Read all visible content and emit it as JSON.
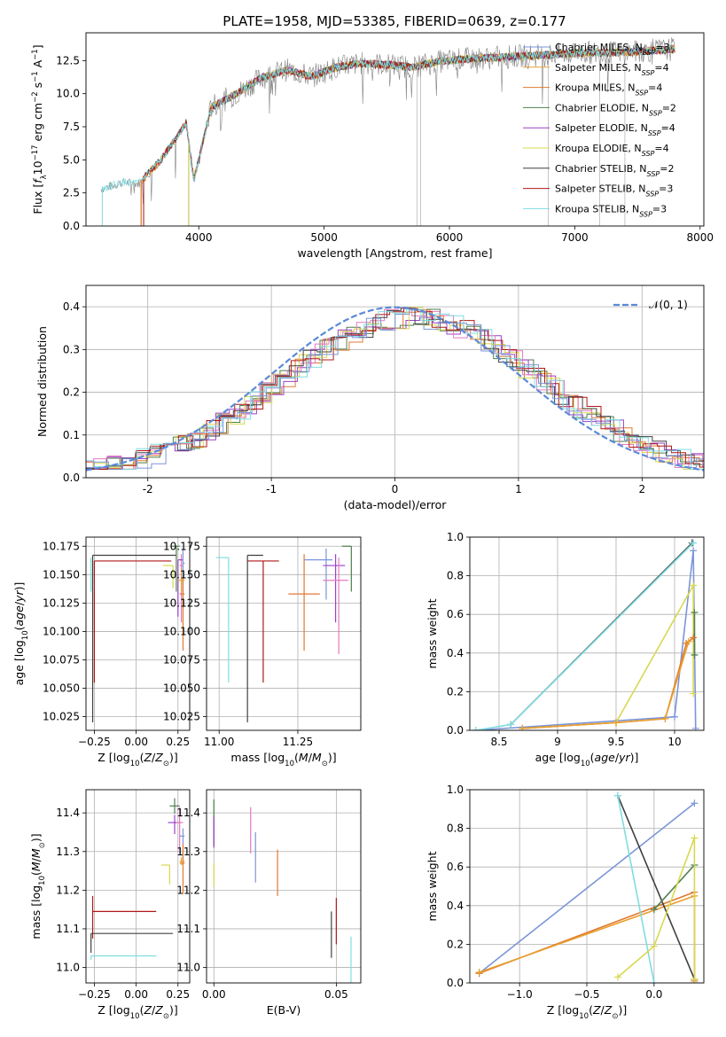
{
  "title": "PLATE=1958, MJD=53385, FIBERID=0639, z=0.177",
  "colors": {
    "chabrier_miles": "#7b95d8",
    "salpeter_miles": "#e8a030",
    "kroupa_miles": "#e07a30",
    "chabrier_elodie": "#4f7f4f",
    "salpeter_elodie": "#9b40c8",
    "kroupa_elodie": "#d8d850",
    "chabrier_stelib": "#404040",
    "salpeter_stelib": "#b01818",
    "kroupa_stelib": "#80dde0",
    "observed": "#808080",
    "pink": "#e37ac0",
    "gauss": "#5b8ad8",
    "lime": "#c8e050"
  },
  "chart_data": [
    {
      "id": "spectrum",
      "type": "line",
      "xlabel": "wavelength [Angstrom, rest frame]",
      "ylabel": "Flux [f_λ10^-17 erg cm^-2 s^-1 A^-1]",
      "xlim": [
        3100,
        8030
      ],
      "ylim": [
        0,
        14.6
      ],
      "xticks": [
        4000,
        5000,
        6000,
        7000,
        8000
      ],
      "yticks": [
        0.0,
        2.5,
        5.0,
        7.5,
        10.0,
        12.5
      ],
      "legend_position": "right",
      "legend": [
        "Chabrier MILES, N_SSP=3",
        "Salpeter MILES, N_SSP=4",
        "Kroupa MILES, N_SSP=4",
        "Chabrier ELODIE, N_SSP=2",
        "Salpeter ELODIE, N_SSP=4",
        "Kroupa ELODIE, N_SSP=4",
        "Chabrier STELIB, N_SSP=2",
        "Salpeter STELIB, N_SSP=3",
        "Kroupa STELIB, N_SSP=3"
      ],
      "continuum": {
        "x": [
          3220,
          3400,
          3520,
          3700,
          3900,
          3960,
          4100,
          4300,
          4500,
          4700,
          4900,
          5100,
          5300,
          5500,
          5700,
          5900,
          6100,
          6300,
          6500,
          6700,
          6900,
          7100,
          7300,
          7500,
          7700,
          7800
        ],
        "y": [
          2.8,
          3.3,
          3.2,
          5.0,
          7.8,
          3.5,
          9.0,
          10.0,
          11.2,
          11.8,
          11.3,
          12.0,
          12.3,
          12.2,
          12.0,
          12.4,
          12.6,
          12.7,
          12.8,
          12.9,
          13.0,
          13.1,
          13.1,
          13.2,
          13.3,
          13.4
        ]
      }
    },
    {
      "id": "residuals",
      "type": "step",
      "xlabel": "(data-model)/error",
      "ylabel": "Normed distribution",
      "xlim": [
        -2.5,
        2.5
      ],
      "ylim": [
        0,
        0.45
      ],
      "xticks": [
        -2,
        -1,
        0,
        1,
        2
      ],
      "yticks": [
        0.0,
        0.1,
        0.2,
        0.3,
        0.4
      ],
      "gauss_label": "𝒩(0, 1)",
      "gauss_position": "top-right"
    },
    {
      "id": "age_vs_Z",
      "type": "errorbar",
      "xlabel": "Z [log10(Z/Z⊙)]",
      "ylabel": "age [log10(age/yr)]",
      "xlim": [
        -0.3,
        0.32
      ],
      "ylim": [
        10.013,
        10.183
      ],
      "xticks": [
        -0.25,
        0.0,
        0.25
      ],
      "xtick_labels": [
        "−0.25",
        "0.00",
        "0.25"
      ],
      "yticks": [
        10.025,
        10.05,
        10.075,
        10.1,
        10.125,
        10.15,
        10.175
      ],
      "ytick_labels": [
        "10.025",
        "10.050",
        "10.075",
        "10.100",
        "10.125",
        "10.150",
        "10.175"
      ],
      "points": [
        {
          "c": "chabrier_stelib",
          "x": -0.26,
          "xe": [
            0.0,
            0.5
          ],
          "y": 10.167,
          "ye": [
            0.147,
            0.0
          ]
        },
        {
          "c": "salpeter_stelib",
          "x": -0.25,
          "xe": [
            0.0,
            0.46
          ],
          "y": 10.162,
          "ye": [
            0.107,
            0.0
          ]
        },
        {
          "c": "kroupa_stelib",
          "x": -0.27,
          "xe": [
            0.0,
            0.0
          ],
          "y": 10.165,
          "ye": [
            0.03,
            0.0
          ]
        },
        {
          "c": "chabrier_elodie",
          "x": 0.24,
          "xe": [
            0.03,
            0.02
          ],
          "y": 10.175,
          "ye": [
            0.04,
            0.0
          ]
        },
        {
          "c": "kroupa_elodie",
          "x": 0.22,
          "xe": [
            0.06,
            0.0
          ],
          "y": 10.158,
          "ye": [
            0.02,
            0.0
          ]
        },
        {
          "c": "pink",
          "x": 0.27,
          "xe": [
            0.01,
            0.01
          ],
          "y": 10.158,
          "ye": [
            0.05,
            0.01
          ]
        },
        {
          "c": "salpeter_elodie",
          "x": 0.25,
          "xe": [
            0.0,
            0.03
          ],
          "y": 10.163,
          "ye": [
            0.05,
            0.0
          ]
        },
        {
          "c": "chabrier_miles",
          "x": 0.28,
          "xe": [
            0.0,
            0.01
          ],
          "y": 10.16,
          "ye": [
            0.03,
            0.012
          ]
        },
        {
          "c": "kroupa_miles",
          "x": 0.28,
          "xe": [
            0.02,
            0.01
          ],
          "y": 10.133,
          "ye": [
            0.05,
            0.014
          ]
        },
        {
          "c": "salpeter_miles",
          "x": 0.27,
          "xe": [
            0.02,
            0.02
          ],
          "y": 10.145,
          "ye": [
            0.01,
            0.01
          ]
        }
      ]
    },
    {
      "id": "age_vs_mass",
      "type": "errorbar",
      "xlabel": "mass [log10(M/M⊙)]",
      "xlim": [
        10.96,
        11.45
      ],
      "ylim": [
        10.013,
        10.183
      ],
      "xticks": [
        11.0,
        11.25
      ],
      "xtick_labels": [
        "11.00",
        "11.25"
      ],
      "yticks": [
        10.025,
        10.05,
        10.075,
        10.1,
        10.125,
        10.15,
        10.175
      ],
      "ytick_labels": [
        "10.025",
        "10.050",
        "10.075",
        "10.100",
        "10.125",
        "10.150",
        "10.175"
      ],
      "points": [
        {
          "c": "kroupa_stelib",
          "x": 11.03,
          "xe": [
            0.04,
            0.0
          ],
          "y": 10.165,
          "ye": [
            0.11,
            0.0
          ]
        },
        {
          "c": "chabrier_stelib",
          "x": 11.09,
          "xe": [
            0.0,
            0.05
          ],
          "y": 10.167,
          "ye": [
            0.147,
            0.0
          ]
        },
        {
          "c": "salpeter_stelib",
          "x": 11.14,
          "xe": [
            0.05,
            0.05
          ],
          "y": 10.162,
          "ye": [
            0.107,
            0.0
          ]
        },
        {
          "c": "kroupa_miles",
          "x": 11.27,
          "xe": [
            0.05,
            0.05
          ],
          "y": 10.133,
          "ye": [
            0.05,
            0.035
          ]
        },
        {
          "c": "chabrier_miles",
          "x": 11.34,
          "xe": [
            0.07,
            0.02
          ],
          "y": 10.163,
          "ye": [
            0.035,
            0.01
          ]
        },
        {
          "c": "salpeter_elodie",
          "x": 11.37,
          "xe": [
            0.04,
            0.03
          ],
          "y": 10.158,
          "ye": [
            0.05,
            0.01
          ]
        },
        {
          "c": "pink",
          "x": 11.38,
          "xe": [
            0.05,
            0.03
          ],
          "y": 10.145,
          "ye": [
            0.065,
            0.02
          ]
        },
        {
          "c": "chabrier_elodie",
          "x": 11.42,
          "xe": [
            0.03,
            0.0
          ],
          "y": 10.175,
          "ye": [
            0.04,
            0.0
          ]
        }
      ]
    },
    {
      "id": "weight_vs_age",
      "type": "line",
      "xlabel": "age [log10(age/yr)]",
      "ylabel": "mass weight",
      "xlim": [
        8.25,
        10.25
      ],
      "ylim": [
        0.0,
        1.0
      ],
      "xticks": [
        8.5,
        9.0,
        9.5,
        10.0
      ],
      "yticks": [
        0.0,
        0.2,
        0.4,
        0.6,
        0.8,
        1.0
      ],
      "series": [
        {
          "c": "chabrier_miles",
          "x": [
            8.3,
            10.0,
            10.16,
            10.18
          ],
          "y": [
            0.0,
            0.07,
            0.93,
            0.01
          ]
        },
        {
          "c": "chabrier_stelib",
          "x": [
            8.6,
            10.15
          ],
          "y": [
            0.03,
            0.97
          ]
        },
        {
          "c": "kroupa_stelib",
          "x": [
            8.3,
            8.6,
            10.16
          ],
          "y": [
            0.0,
            0.03,
            0.97
          ]
        },
        {
          "c": "kroupa_elodie",
          "x": [
            8.7,
            9.5,
            10.16,
            10.16
          ],
          "y": [
            0.01,
            0.04,
            0.75,
            0.19
          ]
        },
        {
          "c": "chabrier_elodie",
          "x": [
            10.17,
            10.17
          ],
          "y": [
            0.39,
            0.61
          ]
        },
        {
          "c": "kroupa_miles",
          "x": [
            8.7,
            9.5,
            9.92,
            10.1,
            10.16
          ],
          "y": [
            0.01,
            0.04,
            0.06,
            0.45,
            0.48
          ]
        },
        {
          "c": "salpeter_miles",
          "x": [
            8.7,
            9.5,
            9.92,
            10.12
          ],
          "y": [
            0.01,
            0.04,
            0.06,
            0.46
          ]
        }
      ]
    },
    {
      "id": "mass_vs_Z",
      "type": "errorbar",
      "xlabel": "Z [log10(Z/Z⊙)]",
      "ylabel": "mass [log10(M/M⊙)]",
      "xlim": [
        -0.3,
        0.32
      ],
      "ylim": [
        10.96,
        11.46
      ],
      "xticks": [
        -0.25,
        0.0,
        0.25
      ],
      "xtick_labels": [
        "−0.25",
        "0.00",
        "0.25"
      ],
      "yticks": [
        11.0,
        11.1,
        11.2,
        11.3,
        11.4
      ],
      "points": [
        {
          "c": "salpeter_stelib",
          "x": -0.26,
          "xe": [
            0.0,
            0.38
          ],
          "y": 11.145,
          "ye": [
            0.07,
            0.04
          ]
        },
        {
          "c": "chabrier_stelib",
          "x": -0.27,
          "xe": [
            0.0,
            0.49
          ],
          "y": 11.088,
          "ye": [
            0.05,
            0.0
          ]
        },
        {
          "c": "kroupa_stelib",
          "x": -0.27,
          "xe": [
            0.0,
            0.39
          ],
          "y": 11.03,
          "ye": [
            0.01,
            0.0
          ]
        },
        {
          "c": "chabrier_elodie",
          "x": 0.23,
          "xe": [
            0.03,
            0.03
          ],
          "y": 11.418,
          "ye": [
            0.02,
            0.02
          ]
        },
        {
          "c": "salpeter_elodie",
          "x": 0.23,
          "xe": [
            0.04,
            0.03
          ],
          "y": 11.375,
          "ye": [
            0.03,
            0.02
          ]
        },
        {
          "c": "pink",
          "x": 0.26,
          "xe": [
            0.02,
            0.02
          ],
          "y": 11.375,
          "ye": [
            0.08,
            0.04
          ]
        },
        {
          "c": "chabrier_miles",
          "x": 0.28,
          "xe": [
            0.02,
            0.01
          ],
          "y": 11.34,
          "ye": [
            0.07,
            0.02
          ]
        },
        {
          "c": "kroupa_elodie",
          "x": 0.2,
          "xe": [
            0.05,
            0.0
          ],
          "y": 11.265,
          "ye": [
            0.05,
            0.0
          ]
        },
        {
          "c": "kroupa_miles",
          "x": 0.28,
          "xe": [
            0.02,
            0.01
          ],
          "y": 11.27,
          "ye": [
            0.08,
            0.05
          ]
        },
        {
          "c": "salpeter_miles",
          "x": 0.27,
          "xe": [
            0.01,
            0.02
          ],
          "y": 11.275,
          "ye": [
            0.01,
            0.01
          ]
        }
      ]
    },
    {
      "id": "mass_vs_EBV",
      "type": "errorbar",
      "xlabel": "E(B-V)",
      "xlim": [
        -0.003,
        0.06
      ],
      "ylim": [
        10.96,
        11.46
      ],
      "xticks": [
        0.0,
        0.05
      ],
      "xtick_labels": [
        "0.00",
        "0.05"
      ],
      "yticks": [
        11.0,
        11.1,
        11.2,
        11.3,
        11.4
      ],
      "points": [
        {
          "c": "chabrier_elodie",
          "x": 0.0,
          "y": 11.375,
          "ye": [
            0.06,
            0.06
          ]
        },
        {
          "c": "salpeter_elodie",
          "x": 0.0,
          "y": 11.34,
          "ye": [
            0.03,
            0.05
          ]
        },
        {
          "c": "kroupa_elodie",
          "x": 0.0,
          "y": 11.24,
          "ye": [
            0.03,
            0.03
          ]
        },
        {
          "c": "pink",
          "x": 0.015,
          "y": 11.355,
          "ye": [
            0.06,
            0.06
          ]
        },
        {
          "c": "chabrier_miles",
          "x": 0.017,
          "y": 11.285,
          "ye": [
            0.065,
            0.065
          ]
        },
        {
          "c": "kroupa_miles",
          "x": 0.026,
          "y": 11.245,
          "ye": [
            0.06,
            0.06
          ]
        },
        {
          "c": "chabrier_stelib",
          "x": 0.048,
          "y": 11.085,
          "ye": [
            0.06,
            0.06
          ]
        },
        {
          "c": "salpeter_stelib",
          "x": 0.05,
          "y": 11.12,
          "ye": [
            0.06,
            0.06
          ]
        },
        {
          "c": "kroupa_stelib",
          "x": 0.056,
          "y": 11.02,
          "ye": [
            0.06,
            0.06
          ]
        }
      ]
    },
    {
      "id": "weight_vs_Z",
      "type": "line",
      "xlabel": "Z [log10(Z/Z⊙)]",
      "ylabel": "mass weight",
      "xlim": [
        -1.37,
        0.37
      ],
      "ylim": [
        0.0,
        1.0
      ],
      "xticks": [
        -1.0,
        -0.5,
        0.0
      ],
      "xtick_labels": [
        "−1.0",
        "−0.5",
        "0.0"
      ],
      "yticks": [
        0.0,
        0.2,
        0.4,
        0.6,
        0.8,
        1.0
      ],
      "series": [
        {
          "c": "chabrier_miles",
          "x": [
            -1.3,
            0.3
          ],
          "y": [
            0.05,
            0.93
          ]
        },
        {
          "c": "kroupa_miles",
          "x": [
            -1.3,
            0.3,
            0.3
          ],
          "y": [
            0.05,
            0.47,
            0.01
          ]
        },
        {
          "c": "salpeter_miles",
          "x": [
            -1.3,
            0.3,
            0.3
          ],
          "y": [
            0.055,
            0.45,
            0.0
          ]
        },
        {
          "c": "chabrier_stelib",
          "x": [
            -0.27,
            0.3
          ],
          "y": [
            0.97,
            0.02
          ]
        },
        {
          "c": "kroupa_stelib",
          "x": [
            -0.27,
            0.0
          ],
          "y": [
            0.97,
            0.0
          ]
        },
        {
          "c": "chabrier_elodie",
          "x": [
            0.0,
            0.3
          ],
          "y": [
            0.38,
            0.61
          ]
        },
        {
          "c": "kroupa_elodie",
          "x": [
            -0.27,
            0.0,
            0.3,
            0.3
          ],
          "y": [
            0.03,
            0.19,
            0.75,
            0.02
          ]
        }
      ]
    }
  ]
}
